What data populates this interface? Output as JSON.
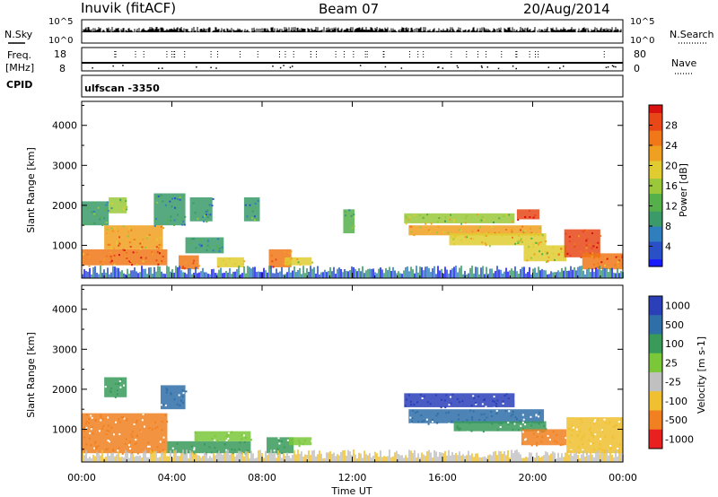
{
  "header": {
    "station": "Inuvik (fitACF)",
    "beam": "Beam 07",
    "date": "20/Aug/2014"
  },
  "side_labels": {
    "nsky": "N.Sky",
    "freq_line1": "Freq.",
    "freq_line2": "[MHz]",
    "cpid": "CPID",
    "nsearch": "N.Search",
    "nave": "Nave",
    "cpid_value": "ulfscan -3350"
  },
  "noise_axis": {
    "ticks_left": [
      "10^5",
      "10^0"
    ],
    "ticks_right": [
      "10^5",
      "10^0"
    ]
  },
  "freq_axis": {
    "ticks_left": [
      "18",
      "8"
    ],
    "ticks_right": [
      "80",
      "0"
    ]
  },
  "time_axis": {
    "title": "Time UT",
    "ticks": [
      "00:00",
      "04:00",
      "08:00",
      "12:00",
      "16:00",
      "20:00",
      "00:00"
    ]
  },
  "chart_data": [
    {
      "type": "heatmap",
      "quantity": "Power",
      "ylabel": "Slant Range [km]",
      "ylim": [
        180,
        4600
      ],
      "yticks": [
        1000,
        2000,
        3000,
        4000
      ],
      "colorbar_label": "Power [dB]",
      "colorbar_ticks": [
        4,
        8,
        12,
        16,
        20,
        24,
        28
      ],
      "colorbar_range": [
        0,
        32
      ],
      "xlim_hours": [
        0,
        24
      ],
      "regions": [
        {
          "t0": 0.0,
          "t1": 3.8,
          "r0": 500,
          "r1": 900,
          "level": 24
        },
        {
          "t0": 1.0,
          "t1": 3.6,
          "r0": 900,
          "r1": 1500,
          "level": 22
        },
        {
          "t0": 0.0,
          "t1": 1.2,
          "r0": 1500,
          "r1": 2100,
          "level": 8
        },
        {
          "t0": 1.2,
          "t1": 2.0,
          "r0": 1800,
          "r1": 2200,
          "level": 16
        },
        {
          "t0": 3.2,
          "t1": 4.6,
          "r0": 1500,
          "r1": 2300,
          "level": 10
        },
        {
          "t0": 4.3,
          "t1": 5.2,
          "r0": 400,
          "r1": 750,
          "level": 26
        },
        {
          "t0": 4.6,
          "t1": 6.3,
          "r0": 800,
          "r1": 1200,
          "level": 8
        },
        {
          "t0": 4.8,
          "t1": 5.8,
          "r0": 1600,
          "r1": 2200,
          "level": 8
        },
        {
          "t0": 6.0,
          "t1": 7.2,
          "r0": 450,
          "r1": 700,
          "level": 20
        },
        {
          "t0": 7.2,
          "t1": 7.9,
          "r0": 1600,
          "r1": 2200,
          "level": 10
        },
        {
          "t0": 8.3,
          "t1": 9.3,
          "r0": 450,
          "r1": 900,
          "level": 24
        },
        {
          "t0": 9.0,
          "t1": 10.2,
          "r0": 500,
          "r1": 700,
          "level": 20
        },
        {
          "t0": 11.6,
          "t1": 12.1,
          "r0": 1300,
          "r1": 1900,
          "level": 12
        },
        {
          "t0": 14.3,
          "t1": 19.2,
          "r0": 1550,
          "r1": 1800,
          "level": 16
        },
        {
          "t0": 14.5,
          "t1": 20.4,
          "r0": 1250,
          "r1": 1500,
          "level": 22
        },
        {
          "t0": 16.3,
          "t1": 20.6,
          "r0": 1000,
          "r1": 1300,
          "level": 18
        },
        {
          "t0": 19.3,
          "t1": 20.3,
          "r0": 1650,
          "r1": 1900,
          "level": 30
        },
        {
          "t0": 19.6,
          "t1": 21.5,
          "r0": 600,
          "r1": 1000,
          "level": 20
        },
        {
          "t0": 21.4,
          "t1": 23.0,
          "r0": 700,
          "r1": 1400,
          "level": 28
        },
        {
          "t0": 22.2,
          "t1": 24.0,
          "r0": 400,
          "r1": 800,
          "level": 24
        }
      ]
    },
    {
      "type": "heatmap",
      "quantity": "Velocity",
      "ylabel": "Slant Range [km]",
      "ylim": [
        180,
        4600
      ],
      "yticks": [
        1000,
        2000,
        3000,
        4000
      ],
      "colorbar_label": "Velocity [m s-1]",
      "colorbar_ticks": [
        1000,
        500,
        100,
        25,
        -25,
        -100,
        -500,
        -1000
      ],
      "xlim_hours": [
        0,
        24
      ],
      "regions": [
        {
          "t0": 0.0,
          "t1": 3.8,
          "r0": 400,
          "r1": 1400,
          "class": -500
        },
        {
          "t0": 1.0,
          "t1": 2.0,
          "r0": 1800,
          "r1": 2300,
          "class": 100
        },
        {
          "t0": 3.5,
          "t1": 4.6,
          "r0": 1500,
          "r1": 2100,
          "class": 500
        },
        {
          "t0": 3.8,
          "t1": 7.5,
          "r0": 400,
          "r1": 700,
          "class": 100
        },
        {
          "t0": 5.0,
          "t1": 7.5,
          "r0": 700,
          "r1": 950,
          "class": 25
        },
        {
          "t0": 8.2,
          "t1": 9.4,
          "r0": 400,
          "r1": 800,
          "class": 100
        },
        {
          "t0": 9.2,
          "t1": 10.2,
          "r0": 600,
          "r1": 800,
          "class": 25
        },
        {
          "t0": 14.3,
          "t1": 19.2,
          "r0": 1550,
          "r1": 1900,
          "class": 1000
        },
        {
          "t0": 14.5,
          "t1": 20.5,
          "r0": 1150,
          "r1": 1500,
          "class": 500
        },
        {
          "t0": 16.5,
          "t1": 20.6,
          "r0": 950,
          "r1": 1200,
          "class": 100
        },
        {
          "t0": 19.5,
          "t1": 21.5,
          "r0": 600,
          "r1": 1000,
          "class": -500
        },
        {
          "t0": 21.5,
          "t1": 24.0,
          "r0": 400,
          "r1": 1300,
          "class": -100
        }
      ]
    }
  ],
  "colors": {
    "power_scale": [
      "#1a1aff",
      "#2a50c8",
      "#2f7fbf",
      "#3a9a6a",
      "#55b04a",
      "#9ac83a",
      "#e0cc30",
      "#f0a020",
      "#f07818",
      "#e84818",
      "#d81010"
    ],
    "velocity": {
      "1000": "#2a3fb8",
      "500": "#2f6fa8",
      "100": "#3a9a5a",
      "25": "#7ac83a",
      "-25": "#c0c0c0",
      "-100": "#f0c030",
      "-500": "#f08020",
      "-1000": "#e82020"
    }
  }
}
